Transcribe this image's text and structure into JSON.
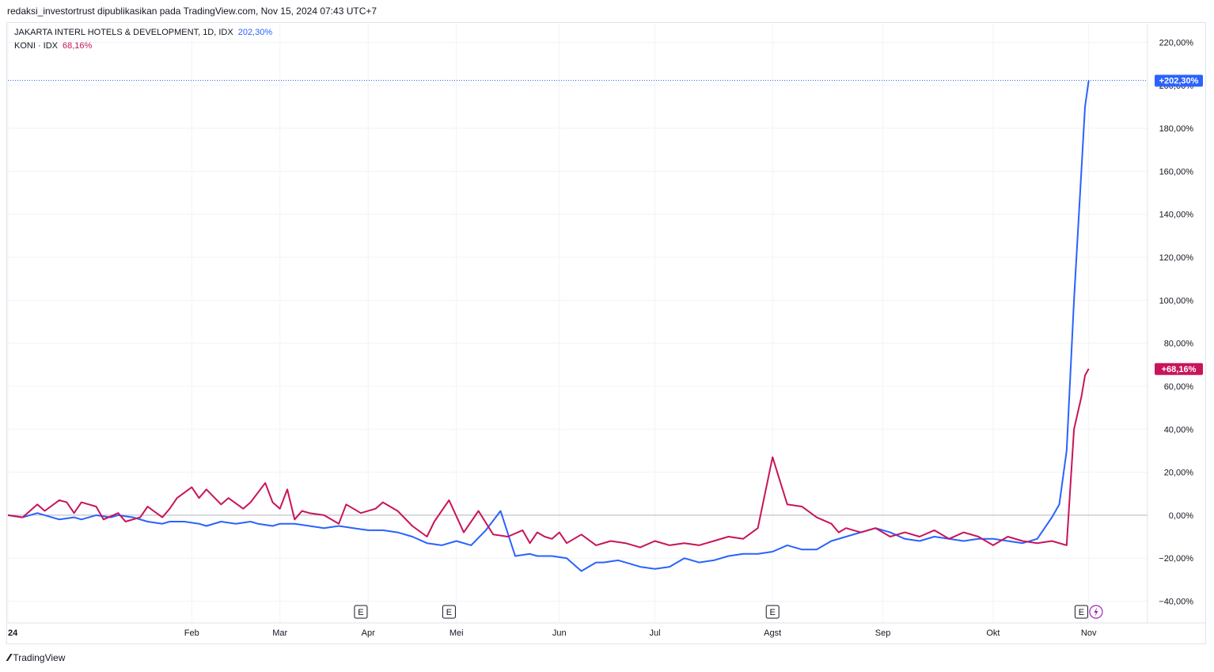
{
  "caption": "redaksi_investortrust dipublikasikan pada TradingView.com, Nov 15, 2024 07:43 UTC+7",
  "footer": {
    "brand": "TradingView",
    "logo_icon": "tradingview-logo-icon"
  },
  "colors": {
    "blue": "#2962ff",
    "red": "#c8145a",
    "grid": "#f0f3fa",
    "zero": "#b2b5be",
    "axis_text": "#131722"
  },
  "legend": [
    {
      "name": "JAKARTA INTERL HOTELS & DEVELOPMENT, 1D, IDX",
      "value": "202,30%",
      "color": "#2962ff"
    },
    {
      "name": "KONI · IDX",
      "value": "68,16%",
      "color": "#c8145a"
    }
  ],
  "chart_data": {
    "type": "line",
    "ylim": [
      -45,
      227
    ],
    "y_ticks": [
      -40,
      -20,
      0,
      20,
      40,
      60,
      80,
      100,
      120,
      140,
      160,
      180,
      200,
      220
    ],
    "y_tick_labels": [
      "−40,00%",
      "−20,00%",
      "0,00%",
      "20,00%",
      "40,00%",
      "60,00%",
      "80,00%",
      "100,00%",
      "120,00%",
      "140,00%",
      "160,00%",
      "180,00%",
      "200,00%",
      "220,00%"
    ],
    "x_label_entries": [
      {
        "t": 0,
        "label": "24"
      },
      {
        "t": 0.25,
        "label": "Feb"
      },
      {
        "t": 0.37,
        "label": "Mar"
      },
      {
        "t": 0.49,
        "label": "Apr"
      },
      {
        "t": 0.61,
        "label": "Mei"
      },
      {
        "t": 0.75,
        "label": "Jun"
      },
      {
        "t": 0.88,
        "label": "Jul"
      },
      {
        "t": 1.04,
        "label": "Agst"
      },
      {
        "t": 1.19,
        "label": "Sep"
      },
      {
        "t": 1.34,
        "label": "Okt"
      },
      {
        "t": 1.47,
        "label": "Nov"
      }
    ],
    "events": [
      {
        "t": 0.48,
        "label": "E"
      },
      {
        "t": 0.6,
        "label": "E"
      },
      {
        "t": 1.04,
        "label": "E"
      },
      {
        "t": 1.46,
        "label": "E"
      }
    ],
    "dividend_icon": {
      "t": 1.48,
      "icon": "lightning-icon"
    },
    "price_labels": [
      {
        "series": 0,
        "text": "+202,30%",
        "value": 202.3
      },
      {
        "series": 1,
        "text": "+68,16%",
        "value": 68.16
      }
    ],
    "series": [
      {
        "name": "JAKARTA INTERL HOTELS & DEVELOPMENT",
        "color": "#2962ff",
        "t": [
          0,
          0.02,
          0.04,
          0.05,
          0.07,
          0.09,
          0.1,
          0.12,
          0.14,
          0.15,
          0.17,
          0.19,
          0.21,
          0.22,
          0.24,
          0.26,
          0.27,
          0.29,
          0.31,
          0.33,
          0.34,
          0.36,
          0.37,
          0.39,
          0.41,
          0.43,
          0.45,
          0.47,
          0.49,
          0.51,
          0.53,
          0.55,
          0.57,
          0.59,
          0.61,
          0.63,
          0.65,
          0.67,
          0.69,
          0.71,
          0.72,
          0.74,
          0.76,
          0.78,
          0.8,
          0.81,
          0.83,
          0.84,
          0.86,
          0.88,
          0.9,
          0.92,
          0.94,
          0.96,
          0.98,
          1.0,
          1.02,
          1.04,
          1.06,
          1.08,
          1.1,
          1.12,
          1.14,
          1.16,
          1.18,
          1.2,
          1.22,
          1.24,
          1.26,
          1.28,
          1.3,
          1.32,
          1.34,
          1.36,
          1.38,
          1.4,
          1.42,
          1.43,
          1.44,
          1.45,
          1.46,
          1.465,
          1.47
        ],
        "values": [
          0,
          -1,
          1,
          0,
          -2,
          -1,
          -2,
          0,
          -1,
          0,
          -1,
          -3,
          -4,
          -3,
          -3,
          -4,
          -5,
          -3,
          -4,
          -3,
          -4,
          -5,
          -4,
          -4,
          -5,
          -6,
          -5,
          -6,
          -7,
          -7,
          -8,
          -10,
          -13,
          -14,
          -12,
          -14,
          -7,
          2,
          -19,
          -18,
          -19,
          -19,
          -20,
          -26,
          -22,
          -22,
          -21,
          -22,
          -24,
          -25,
          -24,
          -20,
          -22,
          -21,
          -19,
          -18,
          -18,
          -17,
          -14,
          -16,
          -16,
          -12,
          -10,
          -8,
          -6,
          -8,
          -11,
          -12,
          -10,
          -11,
          -12,
          -11,
          -11,
          -12,
          -13,
          -11,
          -1,
          5,
          30,
          100,
          160,
          190,
          202.3
        ]
      },
      {
        "name": "KONI",
        "color": "#c8145a",
        "t": [
          0,
          0.02,
          0.04,
          0.05,
          0.07,
          0.08,
          0.09,
          0.1,
          0.12,
          0.13,
          0.15,
          0.16,
          0.18,
          0.19,
          0.21,
          0.22,
          0.23,
          0.25,
          0.26,
          0.27,
          0.29,
          0.3,
          0.32,
          0.33,
          0.35,
          0.36,
          0.37,
          0.38,
          0.39,
          0.4,
          0.41,
          0.43,
          0.45,
          0.46,
          0.47,
          0.48,
          0.5,
          0.51,
          0.53,
          0.55,
          0.57,
          0.58,
          0.6,
          0.62,
          0.64,
          0.66,
          0.68,
          0.7,
          0.71,
          0.72,
          0.73,
          0.74,
          0.75,
          0.76,
          0.78,
          0.8,
          0.82,
          0.84,
          0.86,
          0.88,
          0.9,
          0.92,
          0.94,
          0.96,
          0.98,
          1.0,
          1.02,
          1.04,
          1.06,
          1.08,
          1.1,
          1.12,
          1.13,
          1.135,
          1.14,
          1.15,
          1.16,
          1.18,
          1.2,
          1.22,
          1.24,
          1.26,
          1.28,
          1.3,
          1.32,
          1.34,
          1.36,
          1.38,
          1.4,
          1.42,
          1.44,
          1.45,
          1.46,
          1.465,
          1.47
        ],
        "values": [
          0,
          -1,
          5,
          2,
          7,
          6,
          1,
          6,
          4,
          -2,
          1,
          -3,
          -1,
          4,
          -1,
          3,
          8,
          13,
          8,
          12,
          5,
          8,
          3,
          6,
          15,
          6,
          3,
          12,
          -2,
          2,
          1,
          0,
          -4,
          5,
          3,
          1,
          3,
          6,
          2,
          -5,
          -10,
          -3,
          7,
          -8,
          2,
          -9,
          -10,
          -7,
          -13,
          -8,
          -10,
          -11,
          -8,
          -13,
          -9,
          -14,
          -12,
          -13,
          -15,
          -12,
          -14,
          -13,
          -14,
          -12,
          -10,
          -11,
          -6,
          27,
          5,
          4,
          -1,
          -4,
          -8,
          -7,
          -6,
          -7,
          -8,
          -6,
          -10,
          -8,
          -10,
          -7,
          -11,
          -8,
          -10,
          -14,
          -10,
          -12,
          -13,
          -12,
          -14,
          40,
          55,
          65,
          68.16
        ]
      }
    ]
  }
}
